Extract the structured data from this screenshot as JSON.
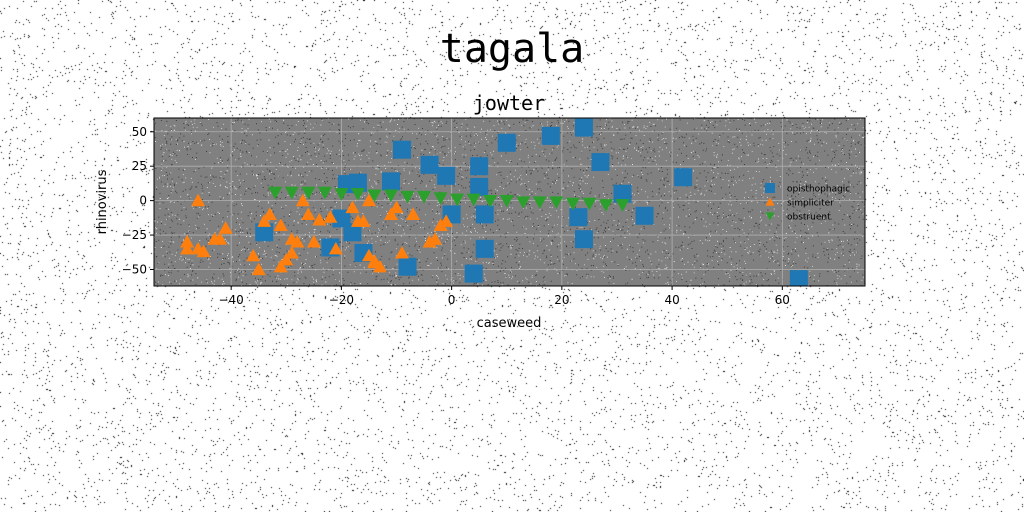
{
  "figure": {
    "suptitle": "tagala"
  },
  "colors": {
    "plot_bg": "#808080",
    "grid": "#b0b0b0",
    "series": [
      "#1f77b4",
      "#ff7f0e",
      "#2ca02c"
    ]
  },
  "chart_data": {
    "type": "scatter",
    "title": "jowter",
    "xlabel": "caseweed",
    "ylabel": "rhinovirus",
    "xlim": [
      -54,
      75
    ],
    "ylim": [
      -62,
      60
    ],
    "xticks": [
      -40,
      -20,
      0,
      20,
      40,
      60
    ],
    "yticks": [
      -50,
      -25,
      0,
      25,
      50
    ],
    "grid": true,
    "legend_placement": "center-right",
    "series": [
      {
        "name": "opisthophagic",
        "marker": "square",
        "points": [
          [
            -34,
            -23
          ],
          [
            -22,
            -34
          ],
          [
            -20,
            -13
          ],
          [
            -18,
            -23
          ],
          [
            -19,
            12
          ],
          [
            -17,
            13
          ],
          [
            -16,
            -38
          ],
          [
            -11,
            14
          ],
          [
            -9,
            37
          ],
          [
            -8,
            -48
          ],
          [
            -4,
            26
          ],
          [
            -1,
            18
          ],
          [
            0,
            -10
          ],
          [
            5,
            10
          ],
          [
            5,
            25
          ],
          [
            6,
            -10
          ],
          [
            6,
            -35
          ],
          [
            4,
            -53
          ],
          [
            10,
            42
          ],
          [
            18,
            47
          ],
          [
            23,
            -12
          ],
          [
            24,
            -28
          ],
          [
            24,
            53
          ],
          [
            27,
            28
          ],
          [
            31,
            5
          ],
          [
            35,
            -11
          ],
          [
            42,
            17
          ],
          [
            63,
            -57
          ]
        ]
      },
      {
        "name": "simpliciter",
        "marker": "triangle",
        "points": [
          [
            -48,
            -30
          ],
          [
            -48,
            -35
          ],
          [
            -46,
            -35
          ],
          [
            -45,
            -37
          ],
          [
            -46,
            0
          ],
          [
            -43,
            -28
          ],
          [
            -42,
            -28
          ],
          [
            -41,
            -20
          ],
          [
            -36,
            -40
          ],
          [
            -35,
            -50
          ],
          [
            -34,
            -15
          ],
          [
            -33,
            -10
          ],
          [
            -31,
            -18
          ],
          [
            -31,
            -48
          ],
          [
            -30,
            -43
          ],
          [
            -29,
            -38
          ],
          [
            -29,
            -28
          ],
          [
            -28,
            -30
          ],
          [
            -27,
            0
          ],
          [
            -26,
            -10
          ],
          [
            -25,
            -30
          ],
          [
            -24,
            -14
          ],
          [
            -22,
            -12
          ],
          [
            -21,
            -35
          ],
          [
            -18,
            -5
          ],
          [
            -17,
            -15
          ],
          [
            -16,
            -15
          ],
          [
            -15,
            -40
          ],
          [
            -15,
            0
          ],
          [
            -14,
            -44
          ],
          [
            -14,
            -45
          ],
          [
            -13,
            -48
          ],
          [
            -11,
            -10
          ],
          [
            -10,
            -5
          ],
          [
            -9,
            -38
          ],
          [
            -7,
            -10
          ],
          [
            -4,
            -30
          ],
          [
            -3,
            -28
          ],
          [
            -2,
            -18
          ],
          [
            -1,
            -15
          ]
        ]
      },
      {
        "name": "obstruent",
        "marker": "triangle-down",
        "points": [
          [
            -32,
            6
          ],
          [
            -29,
            6
          ],
          [
            -26,
            6
          ],
          [
            -23,
            6
          ],
          [
            -20,
            5
          ],
          [
            -17,
            5
          ],
          [
            -14,
            4
          ],
          [
            -11,
            4
          ],
          [
            -8,
            3
          ],
          [
            -5,
            3
          ],
          [
            -2,
            2
          ],
          [
            1,
            1
          ],
          [
            4,
            1
          ],
          [
            7,
            0
          ],
          [
            10,
            0
          ],
          [
            13,
            -1
          ],
          [
            16,
            -1
          ],
          [
            19,
            -1
          ],
          [
            22,
            -2
          ],
          [
            25,
            -2
          ],
          [
            28,
            -3
          ],
          [
            31,
            -3
          ]
        ]
      }
    ]
  }
}
